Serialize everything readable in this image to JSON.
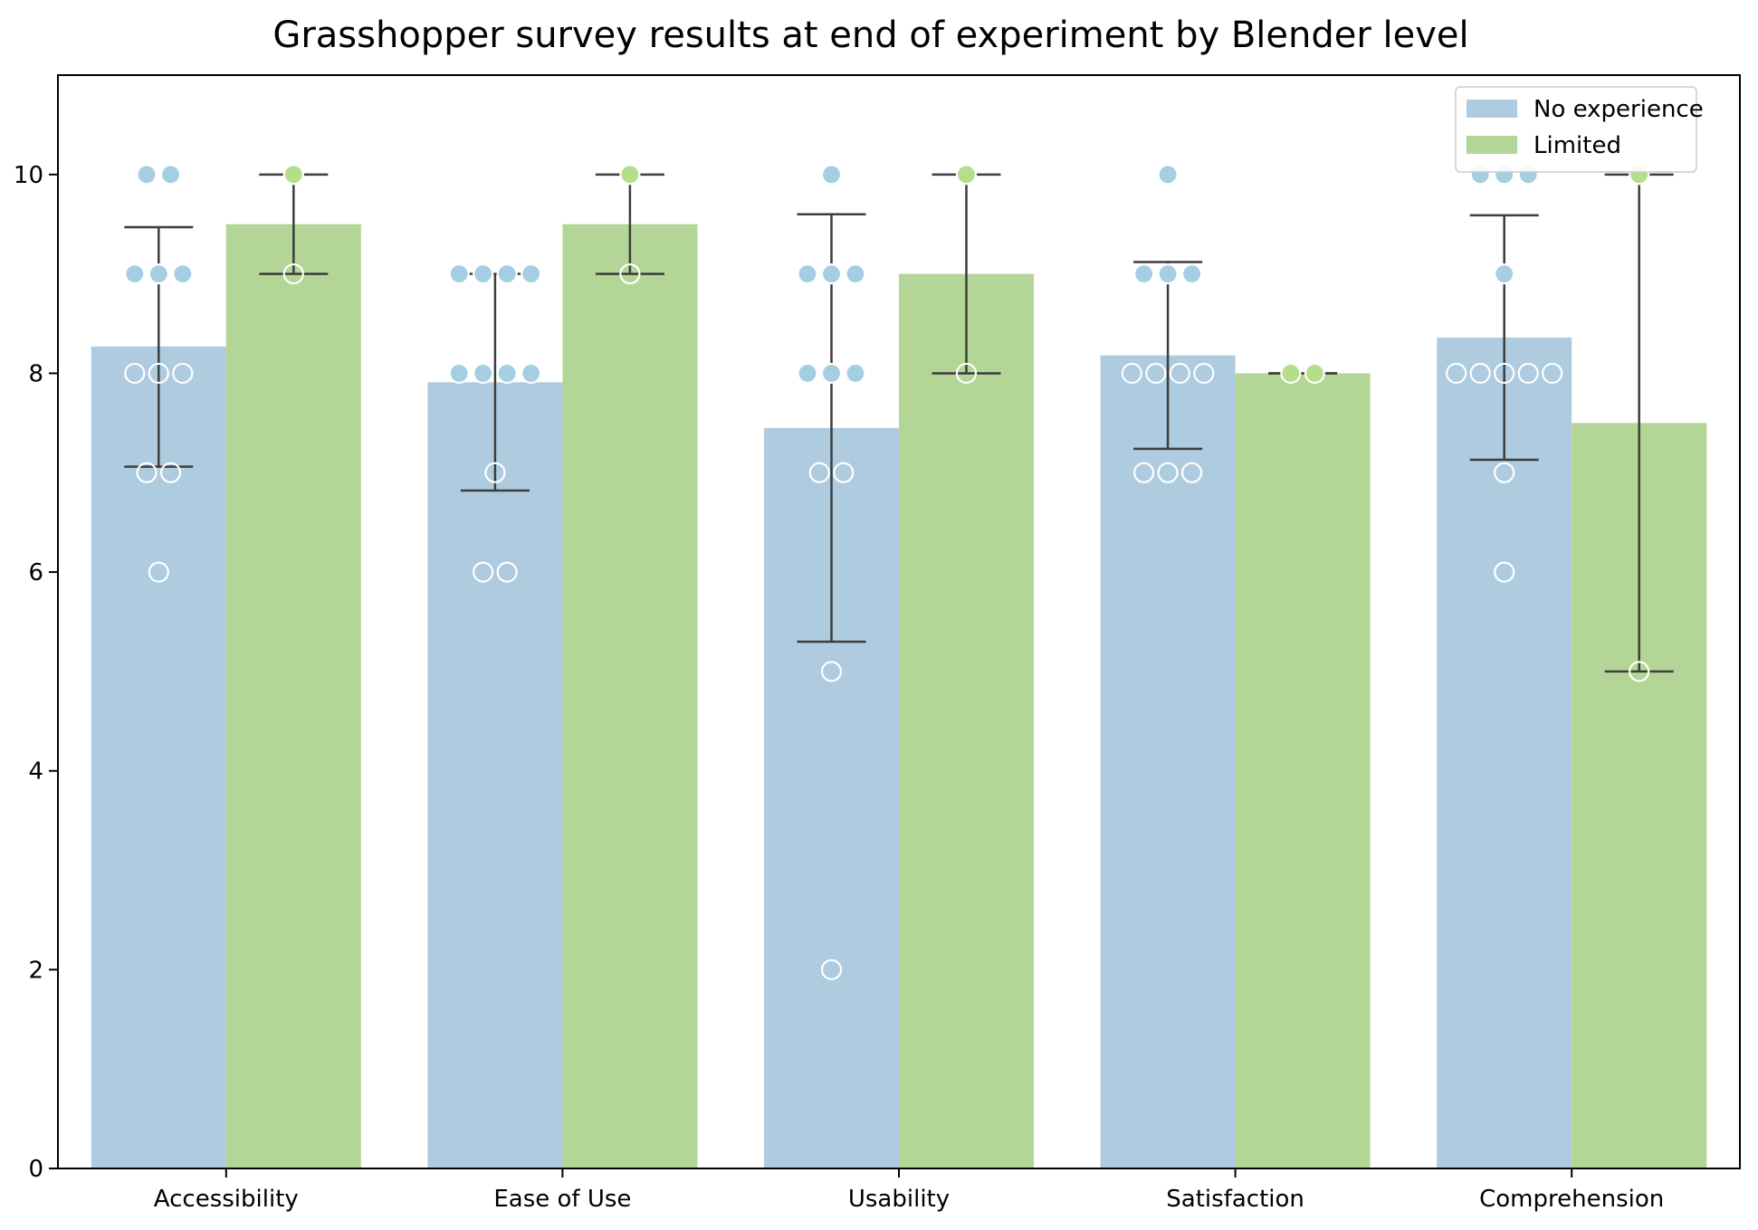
{
  "chart_data": {
    "type": "bar",
    "title": "Grasshopper survey results at end of experiment by Blender level",
    "xlabel": "",
    "ylabel": "",
    "ylim": [
      0,
      11
    ],
    "yticks": [
      0,
      2,
      4,
      6,
      8,
      10
    ],
    "categories": [
      "Accessibility",
      "Ease of Use",
      "Usability",
      "Satisfaction",
      "Comprehension"
    ],
    "legend_position": "top-right",
    "grid": false,
    "series": [
      {
        "name": "No experience",
        "color": "#aecbdf",
        "dot_color": "#a6cee3",
        "values": [
          8.27,
          7.91,
          7.45,
          8.18,
          8.36
        ],
        "err_low": [
          7.06,
          6.82,
          5.3,
          7.24,
          7.13
        ],
        "err_high": [
          9.47,
          9.0,
          9.6,
          9.12,
          9.59
        ],
        "points": [
          [
            10,
            10,
            9,
            9,
            9,
            8,
            8,
            8,
            7,
            7,
            6
          ],
          [
            9,
            9,
            9,
            9,
            8,
            8,
            8,
            8,
            7,
            6,
            6
          ],
          [
            10,
            9,
            9,
            9,
            8,
            8,
            8,
            7,
            7,
            5,
            2
          ],
          [
            10,
            9,
            9,
            9,
            8,
            8,
            8,
            8,
            7,
            7,
            7
          ],
          [
            10,
            10,
            10,
            9,
            8,
            8,
            8,
            8,
            8,
            7,
            6
          ]
        ]
      },
      {
        "name": "Limited",
        "color": "#b3d595",
        "dot_color": "#b2df8a",
        "values": [
          9.5,
          9.5,
          9.0,
          8.0,
          7.5
        ],
        "err_low": [
          9,
          9,
          8,
          8,
          5
        ],
        "err_high": [
          10,
          10,
          10,
          8,
          10
        ],
        "points": [
          [
            10,
            9
          ],
          [
            10,
            9
          ],
          [
            10,
            8
          ],
          [
            8,
            8
          ],
          [
            10,
            5
          ]
        ]
      }
    ]
  }
}
